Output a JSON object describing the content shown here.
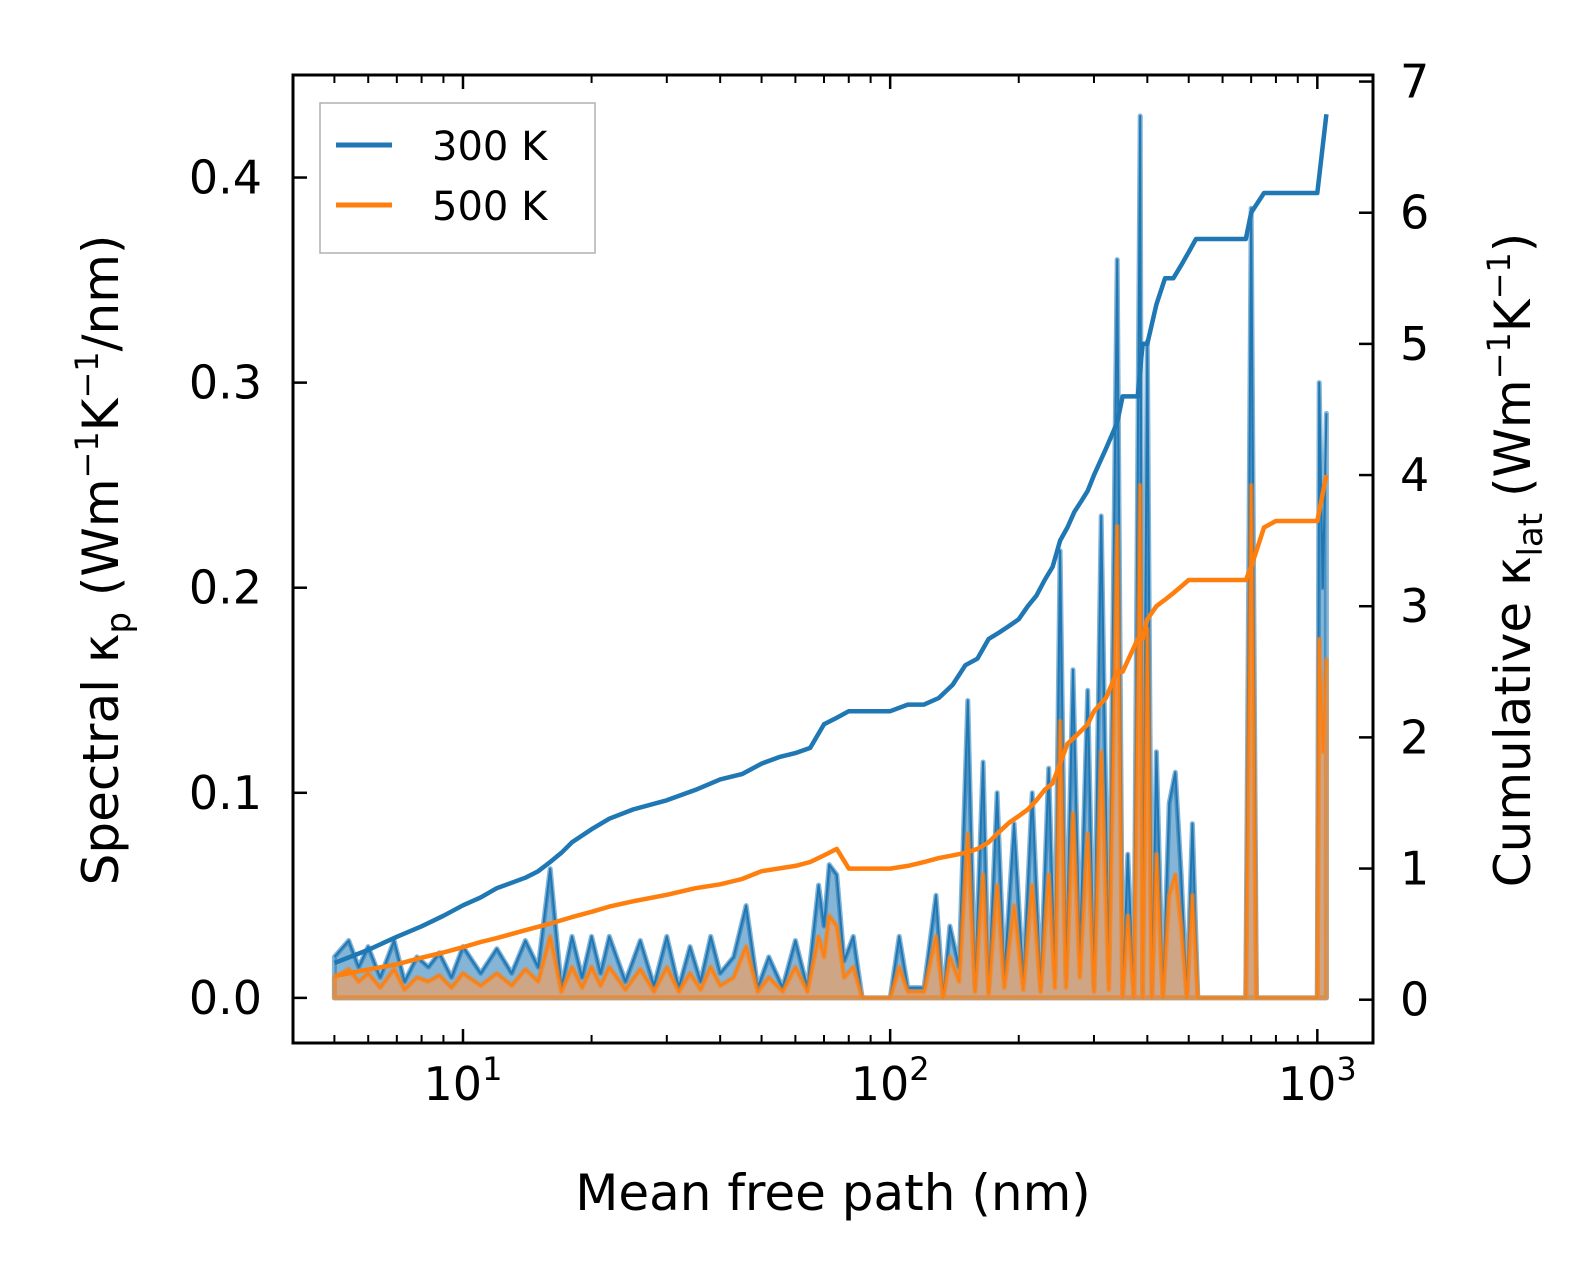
{
  "chart_data": {
    "type": "line",
    "xscale": "log",
    "xlabel": "Mean free path (nm)",
    "ylabel_parts": {
      "prefix": "Spectral κ",
      "sub": "p",
      "mid": " (Wm",
      "sup1": "−1",
      "k": "K",
      "sup2": "−1",
      "suffix": "/nm)"
    },
    "y2label_parts": {
      "prefix": "Cumulative κ",
      "sub": "lat",
      "mid": " (Wm",
      "sup1": "−1",
      "k": "K",
      "sup2": "−1",
      "suffix": ")"
    },
    "xlim": [
      4.0,
      1350
    ],
    "ylim": [
      -0.022,
      0.45
    ],
    "y2lim": [
      -0.33,
      7.05
    ],
    "xticks": [
      {
        "base": "10",
        "exp": "1",
        "value": 10
      },
      {
        "base": "10",
        "exp": "2",
        "value": 100
      },
      {
        "base": "10",
        "exp": "3",
        "value": 1000
      }
    ],
    "yticks": [
      {
        "label": "0.0",
        "value": 0.0
      },
      {
        "label": "0.1",
        "value": 0.1
      },
      {
        "label": "0.2",
        "value": 0.2
      },
      {
        "label": "0.3",
        "value": 0.3
      },
      {
        "label": "0.4",
        "value": 0.4
      }
    ],
    "y2ticks": [
      {
        "label": "0",
        "value": 0
      },
      {
        "label": "1",
        "value": 1
      },
      {
        "label": "2",
        "value": 2
      },
      {
        "label": "3",
        "value": 3
      },
      {
        "label": "4",
        "value": 4
      },
      {
        "label": "5",
        "value": 5
      },
      {
        "label": "6",
        "value": 6
      },
      {
        "label": "7",
        "value": 7
      }
    ],
    "legend": {
      "position": "top-left",
      "entries": [
        "300 K",
        "500 K"
      ]
    },
    "series": [
      {
        "name": "300 K",
        "color": "#1f77b4",
        "fill_color": "#1f77b4",
        "cumulative": {
          "x": [
            5.0,
            6,
            7,
            8,
            9,
            10,
            11,
            12,
            14,
            15,
            16,
            17,
            18,
            20,
            22,
            25,
            30,
            35,
            40,
            45,
            50,
            55,
            60,
            65,
            70,
            75,
            80,
            90,
            100,
            110,
            120,
            130,
            140,
            150,
            160,
            170,
            180,
            190,
            200,
            210,
            220,
            230,
            240,
            250,
            260,
            270,
            280,
            290,
            300,
            320,
            340,
            350,
            380,
            390,
            400,
            420,
            440,
            460,
            480,
            500,
            520,
            550,
            600,
            680,
            700,
            750,
            800,
            900,
            1000,
            1050
          ],
          "y": [
            0.28,
            0.38,
            0.48,
            0.56,
            0.64,
            0.72,
            0.78,
            0.85,
            0.93,
            0.98,
            1.05,
            1.12,
            1.2,
            1.3,
            1.38,
            1.45,
            1.52,
            1.6,
            1.68,
            1.72,
            1.8,
            1.85,
            1.88,
            1.92,
            2.1,
            2.15,
            2.2,
            2.2,
            2.2,
            2.25,
            2.25,
            2.3,
            2.4,
            2.55,
            2.6,
            2.75,
            2.8,
            2.85,
            2.9,
            3.0,
            3.08,
            3.2,
            3.3,
            3.5,
            3.6,
            3.72,
            3.8,
            3.88,
            4.0,
            4.2,
            4.4,
            4.6,
            4.6,
            5.0,
            5.0,
            5.3,
            5.5,
            5.5,
            5.6,
            5.7,
            5.8,
            5.8,
            5.8,
            5.8,
            6.0,
            6.15,
            6.15,
            6.15,
            6.15,
            6.75
          ]
        },
        "spectral": {
          "x": [
            5.0,
            5.4,
            5.7,
            6.0,
            6.4,
            6.9,
            7.3,
            7.8,
            8.3,
            8.8,
            9.4,
            10,
            11,
            12,
            13,
            14,
            15,
            16,
            17,
            18,
            19,
            20,
            21,
            22,
            24,
            26,
            28,
            30,
            32,
            34,
            36,
            38,
            40,
            43,
            46,
            49,
            52,
            56,
            60,
            64,
            68,
            70,
            72,
            75,
            78,
            82,
            86,
            90,
            100,
            105,
            110,
            120,
            128,
            133,
            138,
            145,
            152,
            158,
            165,
            170,
            178,
            185,
            195,
            205,
            215,
            225,
            235,
            243,
            250,
            258,
            268,
            278,
            290,
            300,
            312,
            325,
            340,
            350,
            360,
            372,
            385,
            390,
            400,
            410,
            420,
            435,
            450,
            465,
            480,
            495,
            510,
            525,
            540,
            560,
            680,
            700,
            720,
            740,
            1000,
            1010,
            1030,
            1050
          ],
          "y": [
            0.02,
            0.028,
            0.015,
            0.025,
            0.01,
            0.028,
            0.008,
            0.02,
            0.015,
            0.022,
            0.01,
            0.025,
            0.012,
            0.024,
            0.012,
            0.028,
            0.015,
            0.063,
            0.005,
            0.03,
            0.01,
            0.03,
            0.012,
            0.03,
            0.008,
            0.028,
            0.006,
            0.03,
            0.005,
            0.025,
            0.008,
            0.03,
            0.012,
            0.02,
            0.045,
            0.005,
            0.02,
            0.005,
            0.028,
            0.005,
            0.055,
            0.035,
            0.065,
            0.06,
            0.018,
            0.03,
            0.0,
            0.0,
            0.0,
            0.03,
            0.005,
            0.005,
            0.05,
            0.0,
            0.035,
            0.015,
            0.145,
            0.005,
            0.115,
            0.003,
            0.1,
            0.01,
            0.085,
            0.008,
            0.1,
            0.005,
            0.112,
            0.01,
            0.218,
            0.01,
            0.16,
            0.02,
            0.15,
            0.005,
            0.235,
            0.008,
            0.36,
            0.0,
            0.07,
            0.0,
            0.43,
            0.0,
            0.32,
            0.0,
            0.12,
            0.0,
            0.095,
            0.11,
            0.06,
            0.0,
            0.085,
            0.0,
            0.0,
            0.0,
            0.0,
            0.385,
            0.0,
            0.0,
            0.0,
            0.3,
            0.2,
            0.285
          ]
        }
      },
      {
        "name": "500 K",
        "color": "#ff7f0e",
        "fill_color": "#e8a26a",
        "cumulative": {
          "x": [
            5.0,
            6,
            7,
            8,
            9,
            10,
            11,
            12,
            14,
            16,
            18,
            20,
            22,
            25,
            30,
            35,
            40,
            45,
            50,
            60,
            65,
            70,
            75,
            80,
            90,
            100,
            110,
            120,
            130,
            140,
            150,
            160,
            170,
            180,
            190,
            200,
            210,
            220,
            230,
            240,
            250,
            260,
            270,
            280,
            290,
            300,
            320,
            340,
            350,
            380,
            390,
            400,
            420,
            440,
            460,
            480,
            500,
            520,
            550,
            600,
            680,
            700,
            750,
            800,
            900,
            1000,
            1050
          ],
          "y": [
            0.18,
            0.23,
            0.27,
            0.32,
            0.36,
            0.4,
            0.44,
            0.47,
            0.53,
            0.58,
            0.63,
            0.67,
            0.71,
            0.75,
            0.8,
            0.85,
            0.88,
            0.92,
            0.98,
            1.02,
            1.05,
            1.1,
            1.15,
            1.0,
            1.0,
            1.0,
            1.02,
            1.05,
            1.08,
            1.1,
            1.12,
            1.15,
            1.2,
            1.28,
            1.35,
            1.4,
            1.45,
            1.52,
            1.6,
            1.65,
            1.8,
            1.95,
            2.0,
            2.05,
            2.1,
            2.2,
            2.3,
            2.5,
            2.5,
            2.75,
            2.75,
            2.9,
            3.0,
            3.05,
            3.1,
            3.15,
            3.2,
            3.2,
            3.2,
            3.2,
            3.2,
            3.3,
            3.6,
            3.65,
            3.65,
            3.65,
            4.0
          ]
        },
        "spectral": {
          "x": [
            5.0,
            5.4,
            5.7,
            6.0,
            6.4,
            6.9,
            7.3,
            7.8,
            8.3,
            8.8,
            9.4,
            10,
            11,
            12,
            13,
            14,
            15,
            16,
            17,
            18,
            19,
            20,
            21,
            22,
            24,
            26,
            28,
            30,
            32,
            34,
            36,
            38,
            40,
            43,
            46,
            49,
            52,
            56,
            60,
            64,
            68,
            70,
            72,
            75,
            78,
            82,
            86,
            90,
            100,
            105,
            110,
            120,
            128,
            133,
            138,
            145,
            152,
            158,
            165,
            170,
            178,
            185,
            195,
            205,
            215,
            225,
            235,
            243,
            250,
            258,
            268,
            278,
            290,
            300,
            312,
            325,
            340,
            350,
            360,
            372,
            385,
            390,
            400,
            410,
            420,
            435,
            450,
            465,
            480,
            495,
            510,
            525,
            540,
            560,
            680,
            700,
            720,
            740,
            1000,
            1010,
            1030,
            1050
          ],
          "y": [
            0.01,
            0.014,
            0.008,
            0.012,
            0.005,
            0.014,
            0.004,
            0.01,
            0.008,
            0.011,
            0.005,
            0.012,
            0.006,
            0.012,
            0.006,
            0.014,
            0.008,
            0.03,
            0.003,
            0.015,
            0.005,
            0.015,
            0.006,
            0.015,
            0.004,
            0.014,
            0.003,
            0.015,
            0.003,
            0.012,
            0.004,
            0.015,
            0.006,
            0.01,
            0.025,
            0.003,
            0.01,
            0.003,
            0.015,
            0.003,
            0.03,
            0.02,
            0.04,
            0.035,
            0.01,
            0.015,
            0.0,
            0.0,
            0.0,
            0.015,
            0.003,
            0.003,
            0.03,
            0.0,
            0.02,
            0.008,
            0.08,
            0.003,
            0.06,
            0.002,
            0.055,
            0.005,
            0.045,
            0.004,
            0.055,
            0.003,
            0.06,
            0.005,
            0.135,
            0.005,
            0.09,
            0.01,
            0.08,
            0.003,
            0.12,
            0.004,
            0.23,
            0.0,
            0.04,
            0.0,
            0.25,
            0.0,
            0.18,
            0.0,
            0.07,
            0.0,
            0.05,
            0.06,
            0.035,
            0.0,
            0.05,
            0.0,
            0.0,
            0.0,
            0.0,
            0.25,
            0.0,
            0.0,
            0.0,
            0.175,
            0.12,
            0.165
          ]
        }
      }
    ]
  }
}
